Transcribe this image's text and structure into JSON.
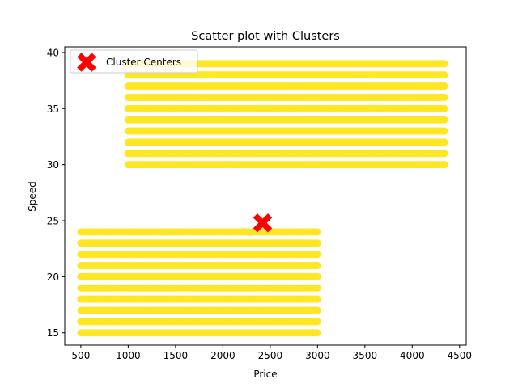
{
  "chart_data": {
    "type": "scatter",
    "title": "Scatter plot with Clusters",
    "xlabel": "Price",
    "ylabel": "Speed",
    "xlim": [
      330,
      4570
    ],
    "ylim": [
      13.9,
      40.5
    ],
    "xticks": [
      500,
      1000,
      1500,
      2000,
      2500,
      3000,
      3500,
      4000,
      4500
    ],
    "yticks": [
      15,
      20,
      25,
      30,
      35,
      40
    ],
    "grid": false,
    "legend_position": "top-left",
    "series": [
      {
        "color": "#fde725",
        "marker": "circle",
        "groups": [
          {
            "x_range": [
              500,
              3000
            ],
            "y_values": [
              15,
              16,
              17,
              18,
              19,
              20,
              21,
              22,
              23,
              24
            ]
          },
          {
            "x_range": [
              1000,
              4350
            ],
            "y_values": [
              30,
              31,
              32,
              33,
              34,
              35,
              36,
              37,
              38,
              39
            ]
          }
        ]
      },
      {
        "name": "Cluster Centers",
        "color": "#ff0000",
        "marker": "X",
        "points": [
          {
            "x": 2420,
            "y": 24.8
          }
        ]
      }
    ]
  }
}
